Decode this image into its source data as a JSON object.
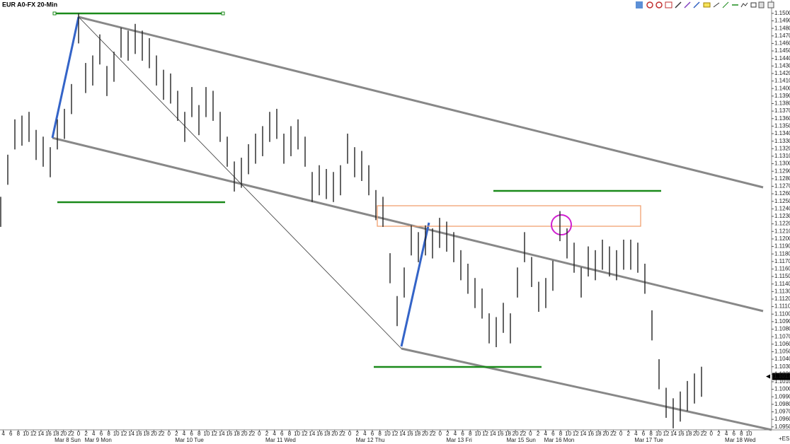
{
  "chart_data": {
    "type": "range-bar",
    "title": "EUR A0-FX 20-Min",
    "footer_label": "+ES",
    "last_price": 1.1017,
    "bar_color": "#222222",
    "ylim": [
      1.0946,
      1.1514
    ],
    "yticks": [
      {
        "value": 1.095,
        "label": "1.0950"
      },
      {
        "value": 1.096,
        "label": "1.0960"
      },
      {
        "value": 1.097,
        "label": "1.0970"
      },
      {
        "value": 1.098,
        "label": "1.0980"
      },
      {
        "value": 1.099,
        "label": "1.0990"
      },
      {
        "value": 1.1,
        "label": "1.1000"
      },
      {
        "value": 1.101,
        "label": "1.1010"
      },
      {
        "value": 1.102,
        "label": "1.1020"
      },
      {
        "value": 1.103,
        "label": "1.1030"
      },
      {
        "value": 1.104,
        "label": "1.1040"
      },
      {
        "value": 1.105,
        "label": "1.1050"
      },
      {
        "value": 1.106,
        "label": "1.1060"
      },
      {
        "value": 1.107,
        "label": "1.1070"
      },
      {
        "value": 1.108,
        "label": "1.1080"
      },
      {
        "value": 1.109,
        "label": "1.1090"
      },
      {
        "value": 1.11,
        "label": "1.1100"
      },
      {
        "value": 1.111,
        "label": "1.1110"
      },
      {
        "value": 1.112,
        "label": "1.1120"
      },
      {
        "value": 1.113,
        "label": "1.1130"
      },
      {
        "value": 1.114,
        "label": "1.1140"
      },
      {
        "value": 1.115,
        "label": "1.1150"
      },
      {
        "value": 1.116,
        "label": "1.1160"
      },
      {
        "value": 1.117,
        "label": "1.1170"
      },
      {
        "value": 1.118,
        "label": "1.1180"
      },
      {
        "value": 1.119,
        "label": "1.1190"
      },
      {
        "value": 1.12,
        "label": "1.1200"
      },
      {
        "value": 1.121,
        "label": "1.1210"
      },
      {
        "value": 1.122,
        "label": "1.1220"
      },
      {
        "value": 1.123,
        "label": "1.1230"
      },
      {
        "value": 1.124,
        "label": "1.1240"
      },
      {
        "value": 1.125,
        "label": "1.1250"
      },
      {
        "value": 1.126,
        "label": "1.1260"
      },
      {
        "value": 1.127,
        "label": "1.1270"
      },
      {
        "value": 1.128,
        "label": "1.1280"
      },
      {
        "value": 1.129,
        "label": "1.1290"
      },
      {
        "value": 1.13,
        "label": "1.1300"
      },
      {
        "value": 1.131,
        "label": "1.1310"
      },
      {
        "value": 1.132,
        "label": "1.1320"
      },
      {
        "value": 1.133,
        "label": "1.1330"
      },
      {
        "value": 1.134,
        "label": "1.1340"
      },
      {
        "value": 1.135,
        "label": "1.1350"
      },
      {
        "value": 1.136,
        "label": "1.1360"
      },
      {
        "value": 1.137,
        "label": "1.1370"
      },
      {
        "value": 1.138,
        "label": "1.1380"
      },
      {
        "value": 1.139,
        "label": "1.1390"
      },
      {
        "value": 1.14,
        "label": "1.1400"
      },
      {
        "value": 1.141,
        "label": "1.1410"
      },
      {
        "value": 1.142,
        "label": "1.1420"
      },
      {
        "value": 1.143,
        "label": "1.1430"
      },
      {
        "value": 1.144,
        "label": "1.1440"
      },
      {
        "value": 1.145,
        "label": "1.1450"
      },
      {
        "value": 1.146,
        "label": "1.1460"
      },
      {
        "value": 1.147,
        "label": "1.1470"
      },
      {
        "value": 1.148,
        "label": "1.1480"
      },
      {
        "value": 1.149,
        "label": "1.1490"
      },
      {
        "value": 1.15,
        "label": "1.1500"
      }
    ],
    "hour_labels": [
      "4",
      "6",
      "8",
      "10",
      "12",
      "14",
      "16",
      "18",
      "20",
      "22",
      "0",
      "2",
      "4",
      "6",
      "8",
      "10",
      "12",
      "14",
      "16",
      "18",
      "20",
      "22",
      "0",
      "2",
      "4",
      "6",
      "8",
      "10",
      "12",
      "14",
      "16",
      "18",
      "20",
      "22",
      "0",
      "2",
      "4",
      "6",
      "8",
      "10",
      "12",
      "14",
      "16",
      "18",
      "20",
      "22",
      "0",
      "2",
      "4",
      "6",
      "8",
      "10",
      "12",
      "14",
      "16",
      "18",
      "20",
      "22",
      "0",
      "2",
      "4",
      "6",
      "8",
      "10",
      "12",
      "14",
      "16",
      "18",
      "20",
      "22",
      "0",
      "2",
      "4",
      "6",
      "8",
      "10",
      "12",
      "14",
      "16",
      "18",
      "20",
      "22",
      "0",
      "2",
      "4",
      "6",
      "8",
      "10",
      "12",
      "14",
      "16",
      "18",
      "20",
      "22",
      "0",
      "2",
      "4",
      "6",
      "8",
      "10"
    ],
    "day_labels": [
      null,
      null,
      null,
      null,
      null,
      null,
      null,
      "Mar 8 Sun",
      null,
      null,
      null,
      "Mar 9 Mon",
      null,
      null,
      null,
      null,
      null,
      null,
      null,
      null,
      null,
      null,
      null,
      "Mar 10 Tue",
      null,
      null,
      null,
      null,
      null,
      null,
      null,
      null,
      null,
      null,
      null,
      "Mar 11 Wed",
      null,
      null,
      null,
      null,
      null,
      null,
      null,
      null,
      null,
      null,
      null,
      "Mar 12 Thu",
      null,
      null,
      null,
      null,
      null,
      null,
      null,
      null,
      null,
      null,
      null,
      "Mar 13 Fri",
      null,
      null,
      null,
      null,
      null,
      null,
      null,
      "Mar 15 Sun",
      null,
      null,
      null,
      null,
      "Mar 16 Mon",
      null,
      null,
      null,
      null,
      null,
      null,
      null,
      null,
      null,
      null,
      null,
      "Mar 17 Tue",
      null,
      null,
      null,
      null,
      null,
      null,
      null,
      null,
      null,
      null,
      null,
      "Mar 18 Wed",
      null,
      null,
      null
    ],
    "highs": [
      1.1256,
      1.1312,
      1.1359,
      1.1364,
      1.1369,
      1.1345,
      1.1336,
      1.1322,
      1.1359,
      1.1373,
      1.1406,
      1.15,
      1.1434,
      1.1444,
      1.1472,
      1.143,
      1.1449,
      1.1481,
      1.1477,
      1.1486,
      1.1477,
      1.1467,
      1.1444,
      1.1425,
      1.142,
      1.1397,
      1.1369,
      1.1402,
      1.1378,
      1.1402,
      1.1397,
      1.1369,
      1.1336,
      1.1303,
      1.1308,
      1.1326,
      1.134,
      1.135,
      1.1369,
      1.1373,
      1.134,
      1.135,
      1.1359,
      1.1336,
      1.1289,
      1.1298,
      1.1293,
      1.1289,
      1.1298,
      1.134,
      1.1322,
      1.1317,
      1.1298,
      1.1265,
      1.1256,
      1.1181,
      1.1124,
      1.1162,
      1.1218,
      1.1209,
      1.1218,
      1.1214,
      1.1228,
      1.1223,
      1.1209,
      1.1185,
      1.1167,
      1.1148,
      1.1134,
      1.1101,
      1.1096,
      1.1115,
      1.1101,
      1.1162,
      1.1209,
      1.1176,
      1.1143,
      1.1148,
      1.1171,
      1.1237,
      1.1214,
      1.1195,
      1.1162,
      1.119,
      1.1185,
      1.1199,
      1.119,
      1.1185,
      1.1199,
      1.1199,
      1.1195,
      1.1167,
      1.1105,
      1.104,
      1.1002,
      1.0988,
      1.0997,
      1.1011,
      1.1021,
      1.103
    ],
    "lows": [
      1.1216,
      1.1272,
      1.1319,
      1.1324,
      1.1329,
      1.1305,
      1.1296,
      1.1282,
      1.1319,
      1.1333,
      1.1366,
      1.146,
      1.1394,
      1.1404,
      1.1432,
      1.139,
      1.1409,
      1.1441,
      1.1437,
      1.1446,
      1.1437,
      1.1427,
      1.1404,
      1.1385,
      1.138,
      1.1357,
      1.1329,
      1.1362,
      1.1338,
      1.1362,
      1.1357,
      1.1329,
      1.1296,
      1.1263,
      1.1268,
      1.1286,
      1.13,
      1.131,
      1.1329,
      1.1333,
      1.13,
      1.131,
      1.1319,
      1.1296,
      1.1249,
      1.1258,
      1.1253,
      1.1249,
      1.1258,
      1.13,
      1.1282,
      1.1277,
      1.1258,
      1.1225,
      1.1216,
      1.1141,
      1.1084,
      1.1122,
      1.1178,
      1.1169,
      1.1178,
      1.1174,
      1.1188,
      1.1183,
      1.1169,
      1.1145,
      1.1127,
      1.1108,
      1.1094,
      1.1061,
      1.1056,
      1.1075,
      1.1061,
      1.1122,
      1.1169,
      1.1136,
      1.1103,
      1.1108,
      1.1131,
      1.1197,
      1.1174,
      1.1155,
      1.1122,
      1.115,
      1.1145,
      1.1159,
      1.115,
      1.1145,
      1.1159,
      1.1159,
      1.1155,
      1.1127,
      1.1065,
      1.1,
      1.0962,
      1.0948,
      1.0957,
      1.0971,
      1.0981,
      1.099
    ]
  }
}
